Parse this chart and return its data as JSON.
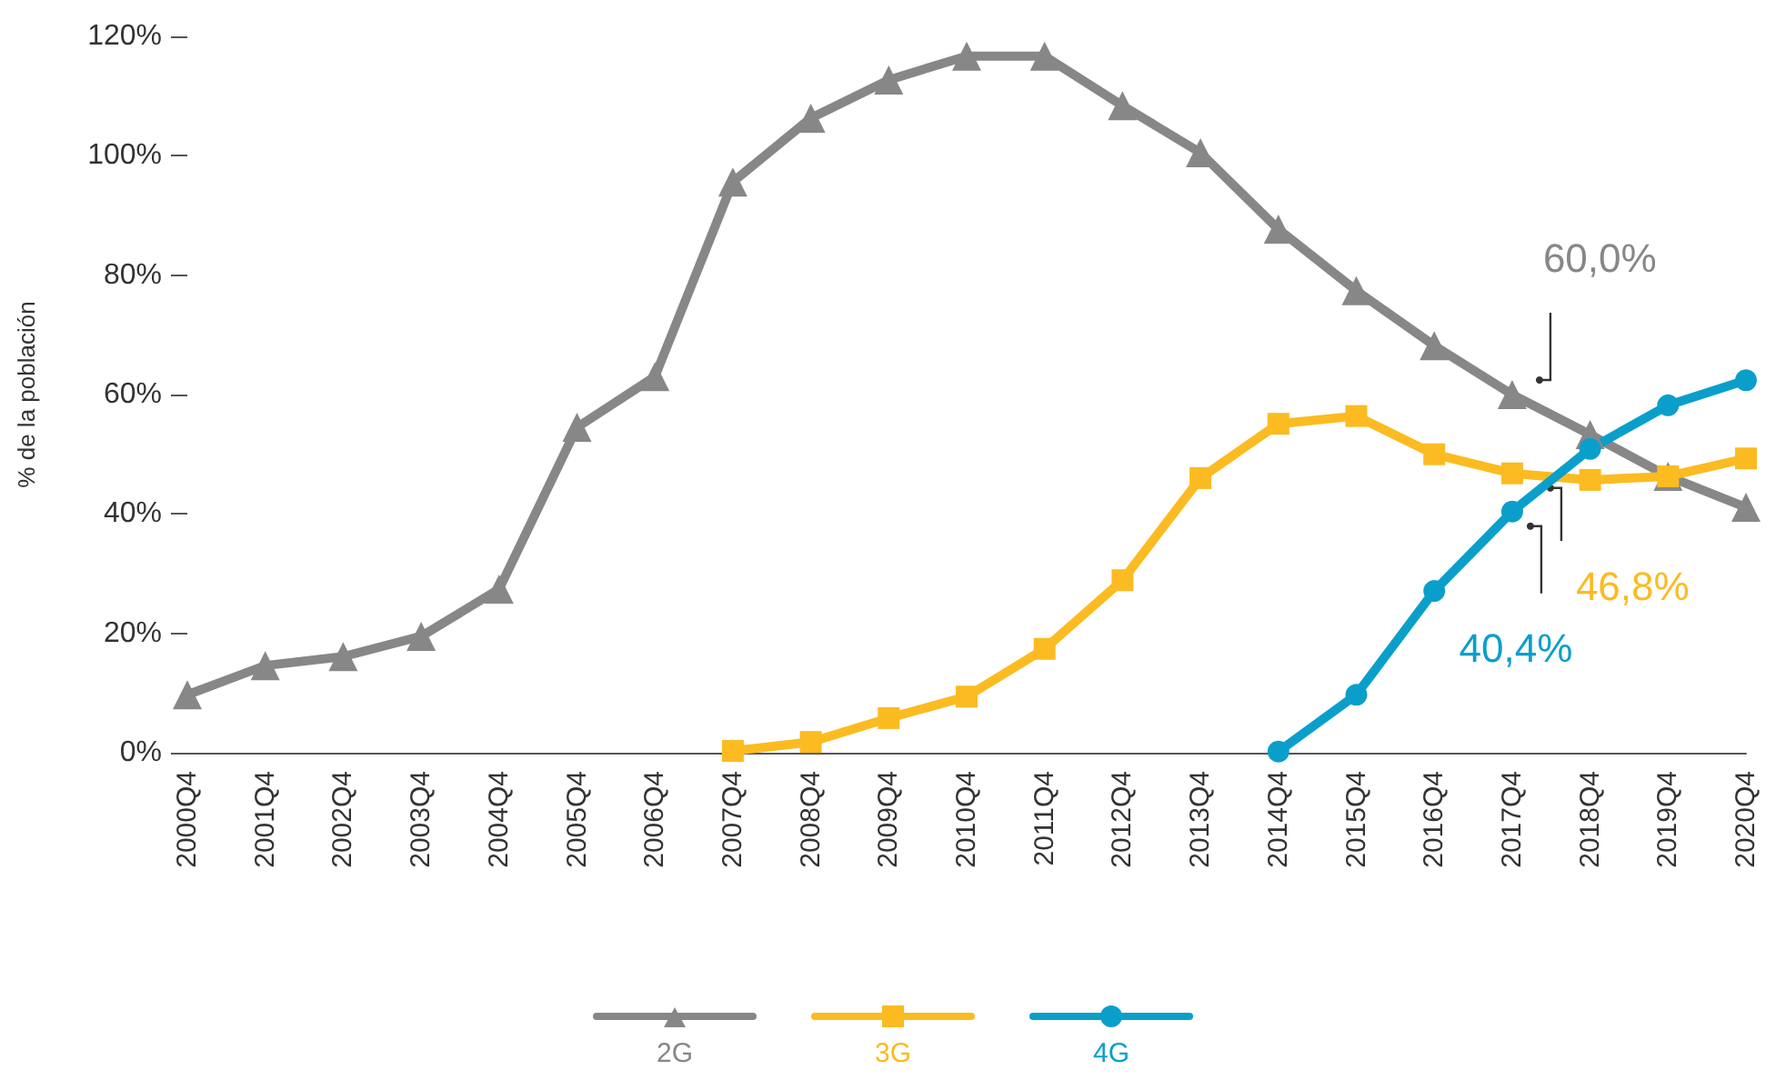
{
  "chart_data": {
    "type": "line",
    "ylabel": "% de la población",
    "categories": [
      "2000Q4",
      "2001Q4",
      "2002Q4",
      "2003Q4",
      "2004Q4",
      "2005Q4",
      "2006Q4",
      "2007Q4",
      "2008Q4",
      "2009Q4",
      "2010Q4",
      "2011Q4",
      "2012Q4",
      "2013Q4",
      "2014Q4",
      "2015Q4",
      "2016Q4",
      "2017Q4",
      "2018Q4",
      "2019Q4",
      "2020Q4"
    ],
    "series": [
      {
        "name": "2G",
        "color": "#878787",
        "marker": "triangle",
        "values": [
          9.7,
          14.6,
          16.1,
          19.5,
          27.4,
          54.5,
          63,
          95.6,
          106.3,
          112.7,
          116.7,
          116.7,
          108.4,
          100.5,
          87.7,
          77.4,
          68.2,
          60.0,
          53.3,
          46.3,
          41.1
        ]
      },
      {
        "name": "3G",
        "color": "#fbbb21",
        "marker": "square",
        "values": [
          null,
          null,
          null,
          null,
          null,
          null,
          null,
          0.3,
          1.8,
          5.8,
          9.4,
          17.4,
          28.9,
          46,
          55.1,
          56.4,
          50,
          46.8,
          45.7,
          46.3,
          49.3
        ]
      },
      {
        "name": "4G",
        "color": "#0a9fcb",
        "marker": "circle",
        "values": [
          null,
          null,
          null,
          null,
          null,
          null,
          null,
          null,
          null,
          null,
          null,
          null,
          null,
          null,
          0.2,
          9.7,
          27.1,
          40.4,
          50.9,
          58.2,
          62.4
        ]
      }
    ],
    "ylim": [
      0,
      120
    ],
    "yticks": [
      {
        "value": 0,
        "label": "0%"
      },
      {
        "value": 20,
        "label": "20%"
      },
      {
        "value": 40,
        "label": "40%"
      },
      {
        "value": 60,
        "label": "60%"
      },
      {
        "value": 80,
        "label": "80%"
      },
      {
        "value": 100,
        "label": "100%"
      },
      {
        "value": 120,
        "label": "120%"
      }
    ],
    "annotations": [
      {
        "text": "60,0%",
        "x": "2017Q4",
        "y": 60.0
      },
      {
        "text": "46,8%",
        "x": "2017Q4",
        "y": 46.8
      },
      {
        "text": "40,4%",
        "x": "2017Q4",
        "y": 40.4
      }
    ],
    "grid": false,
    "legend": "bottom",
    "line_style": "solid"
  }
}
